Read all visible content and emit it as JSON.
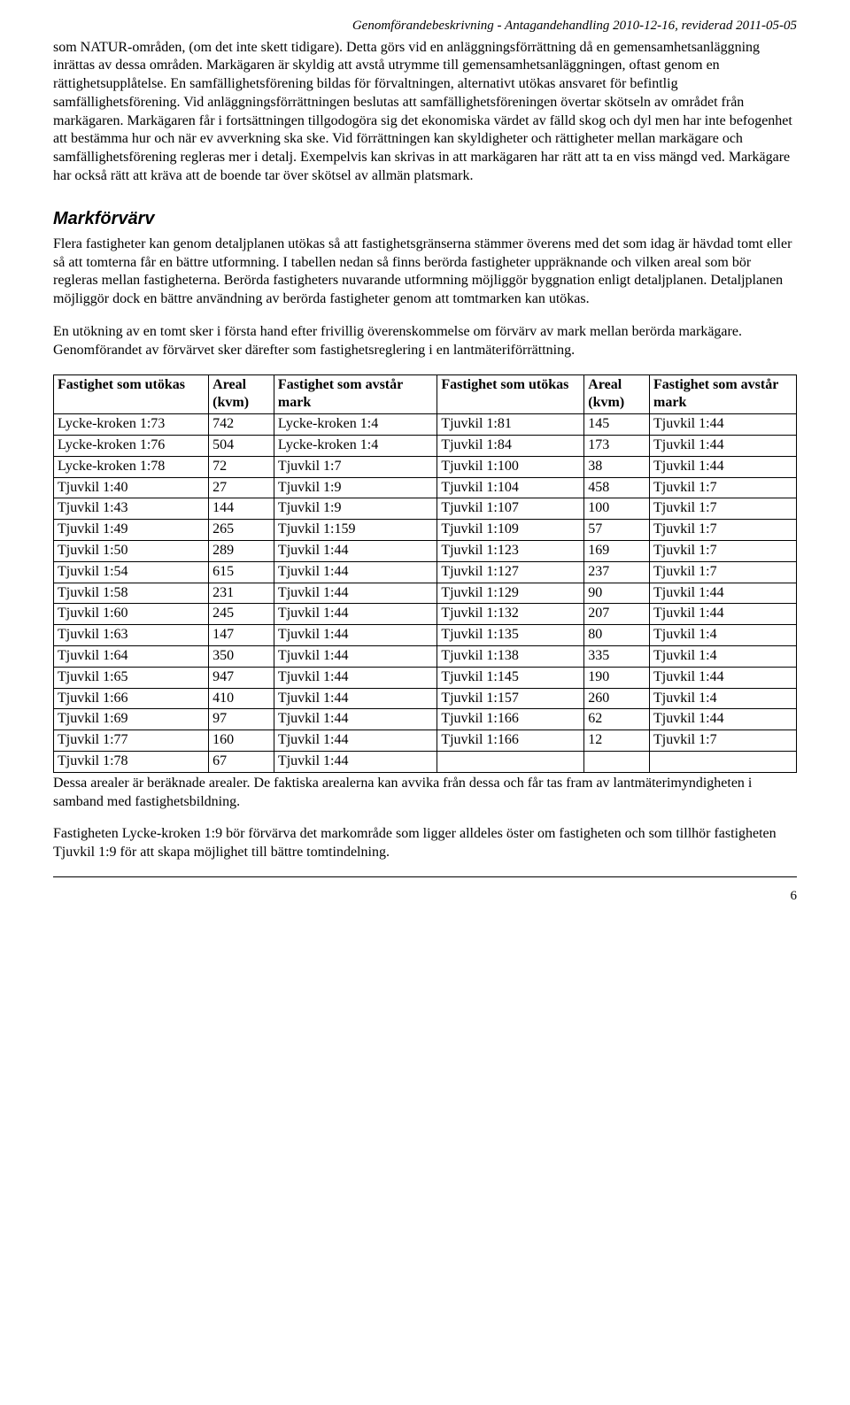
{
  "header": {
    "text": "Genomförandebeskrivning - Antagandehandling 2010-12-16, reviderad 2011-05-05"
  },
  "paragraphs": {
    "p1": "som NATUR-områden, (om det inte skett tidigare). Detta görs vid en anläggningsförrättning då en gemensamhetsanläggning inrättas av dessa områden. Markägaren är skyldig att avstå utrymme till gemensamhetsanläggningen, oftast genom en rättighetsupplåtelse. En samfällighetsförening bildas för förvaltningen, alternativt utökas ansvaret för befintlig samfällighetsförening. Vid anläggningsförrättningen beslutas att samfällighetsföreningen övertar skötseln av området från markägaren. Markägaren får i fortsättningen tillgodogöra sig det ekonomiska värdet av fälld skog och dyl men har inte befogenhet att bestämma hur och när ev avverkning ska ske. Vid förrättningen kan skyldigheter och rättigheter mellan markägare och samfällighetsförening regleras mer i detalj. Exempelvis kan skrivas in att markägaren har rätt att ta en viss mängd ved. Markägare har också rätt att kräva att de boende tar över skötsel av allmän platsmark.",
    "heading": "Markförvärv",
    "p2": "Flera fastigheter kan genom detaljplanen utökas så att fastighetsgränserna stämmer överens med det som idag är hävdad tomt eller så att tomterna får en bättre utformning. I tabellen nedan så finns berörda fastigheter uppräknande och vilken areal som bör regleras mellan fastigheterna. Berörda fastigheters nuvarande utformning möjliggör byggnation enligt detaljplanen. Detaljplanen möjliggör dock en bättre användning av berörda fastigheter genom att tomtmarken kan utökas.",
    "p3": "En utökning av en tomt sker i första hand efter frivillig överenskommelse om förvärv av mark mellan berörda markägare. Genomförandet av förvärvet sker därefter som fastighetsreglering i en lantmäteriförrättning.",
    "p4": "Dessa arealer är beräknade arealer. De faktiska arealerna kan avvika från dessa och får tas fram av lantmäterimyndigheten i samband med fastighetsbildning.",
    "p5": "Fastigheten Lycke-kroken 1:9 bör förvärva det markområde som ligger alldeles öster om fastigheten och som tillhör fastigheten Tjuvkil 1:9 för att skapa möjlighet till bättre tomtindelning."
  },
  "table": {
    "headers": {
      "utokas": "Fastighet som utökas",
      "areal": "Areal (kvm)",
      "avstar": "Fastighet som avstår mark"
    },
    "rows": [
      [
        "Lycke-kroken 1:73",
        "742",
        "Lycke-kroken 1:4",
        "Tjuvkil 1:81",
        "145",
        "Tjuvkil 1:44"
      ],
      [
        "Lycke-kroken 1:76",
        "504",
        "Lycke-kroken 1:4",
        "Tjuvkil 1:84",
        "173",
        "Tjuvkil 1:44"
      ],
      [
        "Lycke-kroken 1:78",
        "72",
        "Tjuvkil 1:7",
        "Tjuvkil 1:100",
        "38",
        "Tjuvkil 1:44"
      ],
      [
        "Tjuvkil 1:40",
        "27",
        "Tjuvkil 1:9",
        "Tjuvkil 1:104",
        "458",
        "Tjuvkil 1:7"
      ],
      [
        "Tjuvkil 1:43",
        "144",
        "Tjuvkil 1:9",
        "Tjuvkil 1:107",
        "100",
        "Tjuvkil 1:7"
      ],
      [
        "Tjuvkil 1:49",
        "265",
        "Tjuvkil 1:159",
        "Tjuvkil 1:109",
        "57",
        "Tjuvkil 1:7"
      ],
      [
        "Tjuvkil 1:50",
        "289",
        "Tjuvkil 1:44",
        "Tjuvkil 1:123",
        "169",
        "Tjuvkil 1:7"
      ],
      [
        "Tjuvkil 1:54",
        "615",
        "Tjuvkil 1:44",
        "Tjuvkil 1:127",
        "237",
        "Tjuvkil 1:7"
      ],
      [
        "Tjuvkil 1:58",
        "231",
        "Tjuvkil 1:44",
        "Tjuvkil 1:129",
        "90",
        "Tjuvkil 1:44"
      ],
      [
        "Tjuvkil 1:60",
        "245",
        "Tjuvkil 1:44",
        "Tjuvkil 1:132",
        "207",
        "Tjuvkil 1:44"
      ],
      [
        "Tjuvkil 1:63",
        "147",
        "Tjuvkil 1:44",
        "Tjuvkil 1:135",
        "80",
        "Tjuvkil 1:4"
      ],
      [
        "Tjuvkil 1:64",
        "350",
        "Tjuvkil 1:44",
        "Tjuvkil 1:138",
        "335",
        "Tjuvkil 1:4"
      ],
      [
        "Tjuvkil 1:65",
        "947",
        "Tjuvkil 1:44",
        "Tjuvkil 1:145",
        "190",
        "Tjuvkil 1:44"
      ],
      [
        "Tjuvkil 1:66",
        "410",
        "Tjuvkil 1:44",
        "Tjuvkil 1:157",
        "260",
        "Tjuvkil 1:4"
      ],
      [
        "Tjuvkil 1:69",
        "97",
        "Tjuvkil 1:44",
        "Tjuvkil 1:166",
        "62",
        "Tjuvkil 1:44"
      ],
      [
        "Tjuvkil 1:77",
        "160",
        "Tjuvkil 1:44",
        "Tjuvkil 1:166",
        "12",
        "Tjuvkil 1:7"
      ],
      [
        "Tjuvkil 1:78",
        "67",
        "Tjuvkil 1:44",
        "",
        "",
        ""
      ]
    ]
  },
  "page_number": "6"
}
